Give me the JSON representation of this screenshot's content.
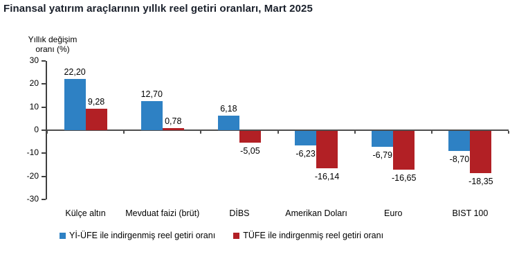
{
  "title": "Finansal yatırım araçlarının yıllık reel getiri oranları, Mart 2025",
  "y_axis": {
    "label_line1": "Yıllık değişim",
    "label_line2": "oranı (%)",
    "ticks": [
      "30",
      "20",
      "10",
      "0",
      "-10",
      "-20",
      "-30"
    ]
  },
  "colors": {
    "title": "#1a202b",
    "axis": "#3f3f3f",
    "zero_line": "#4d4d4d",
    "text": "#000000"
  },
  "chart_data": {
    "type": "bar",
    "title": "Finansal yatırım araçlarının yıllık reel getiri oranları, Mart 2025",
    "xlabel": "",
    "ylabel": "Yıllık değişim oranı (%)",
    "ylim": [
      -30,
      30
    ],
    "y_tick_step": 10,
    "grid": false,
    "legend_position": "bottom",
    "categories": [
      "Külçe altın",
      "Mevduat faizi (brüt)",
      "DİBS",
      "Amerikan Doları",
      "Euro",
      "BIST 100"
    ],
    "series": [
      {
        "name": "Yİ-ÜFE ile indirgenmiş reel getiri oranı",
        "color": "#2e81c4",
        "values": [
          22.2,
          12.7,
          6.18,
          -6.23,
          -6.79,
          -8.7
        ],
        "labels": [
          "22,20",
          "12,70",
          "6,18",
          "-6,23",
          "-6,79",
          "-8,70"
        ]
      },
      {
        "name": "TÜFE ile indirgenmiş reel getiri oranı",
        "color": "#b22025",
        "values": [
          9.28,
          0.78,
          -5.05,
          -16.14,
          -16.65,
          -18.35
        ],
        "labels": [
          "9,28",
          "0,78",
          "-5,05",
          "-16,14",
          "-16,65",
          "-18,35"
        ]
      }
    ]
  }
}
